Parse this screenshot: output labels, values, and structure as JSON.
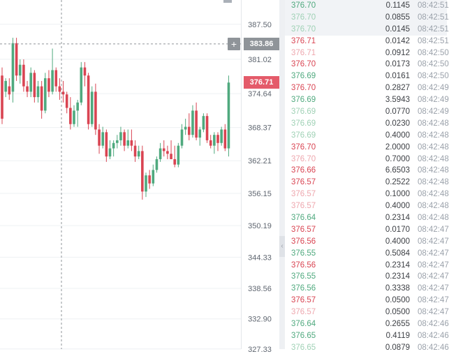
{
  "colors": {
    "up": "#4fa97e",
    "down": "#d94452",
    "up_light": "#9fd1b5",
    "down_light": "#eea7ae",
    "grid": "#eef0f3",
    "crosshair": "#8f9499",
    "axis_text": "#5f6670"
  },
  "chart_data": {
    "type": "candlestick",
    "ylim": [
      327.3,
      392.0
    ],
    "y_ticks": [
      "387.50",
      "381.02",
      "374.64",
      "368.37",
      "362.21",
      "356.15",
      "350.19",
      "344.33",
      "338.56",
      "332.90",
      "327.33"
    ],
    "crosshair_price": "383.86",
    "current_price": "376.71",
    "candles": [
      {
        "o": 378.0,
        "h": 379.5,
        "l": 369.0,
        "c": 370.0
      },
      {
        "o": 375.0,
        "h": 377.5,
        "l": 374.0,
        "c": 377.0
      },
      {
        "o": 376.0,
        "h": 377.5,
        "l": 373.5,
        "c": 374.5
      },
      {
        "o": 375.0,
        "h": 385.0,
        "l": 373.0,
        "c": 384.0
      },
      {
        "o": 384.0,
        "h": 385.0,
        "l": 377.0,
        "c": 378.0
      },
      {
        "o": 378.0,
        "h": 381.0,
        "l": 376.5,
        "c": 380.0
      },
      {
        "o": 380.0,
        "h": 381.0,
        "l": 375.0,
        "c": 376.0
      },
      {
        "o": 376.0,
        "h": 377.0,
        "l": 374.0,
        "c": 375.0
      },
      {
        "o": 375.0,
        "h": 379.5,
        "l": 374.0,
        "c": 378.5
      },
      {
        "o": 378.5,
        "h": 379.0,
        "l": 373.0,
        "c": 374.0
      },
      {
        "o": 374.0,
        "h": 377.0,
        "l": 373.0,
        "c": 376.0
      },
      {
        "o": 376.0,
        "h": 377.0,
        "l": 370.0,
        "c": 371.5
      },
      {
        "o": 371.5,
        "h": 378.5,
        "l": 371.0,
        "c": 377.5
      },
      {
        "o": 377.5,
        "h": 379.0,
        "l": 374.0,
        "c": 375.0
      },
      {
        "o": 375.0,
        "h": 383.0,
        "l": 374.5,
        "c": 379.0
      },
      {
        "o": 379.0,
        "h": 379.5,
        "l": 375.0,
        "c": 376.0
      },
      {
        "o": 376.0,
        "h": 377.5,
        "l": 373.5,
        "c": 375.0
      },
      {
        "o": 375.0,
        "h": 377.0,
        "l": 373.0,
        "c": 374.5
      },
      {
        "o": 374.5,
        "h": 375.0,
        "l": 371.0,
        "c": 372.0
      },
      {
        "o": 372.0,
        "h": 374.0,
        "l": 368.0,
        "c": 369.0
      },
      {
        "o": 369.0,
        "h": 372.5,
        "l": 368.5,
        "c": 371.5
      },
      {
        "o": 371.5,
        "h": 373.5,
        "l": 368.5,
        "c": 373.0
      },
      {
        "o": 373.0,
        "h": 380.5,
        "l": 372.5,
        "c": 379.5
      },
      {
        "o": 379.5,
        "h": 380.5,
        "l": 376.0,
        "c": 378.0
      },
      {
        "o": 378.0,
        "h": 378.5,
        "l": 368.0,
        "c": 369.0
      },
      {
        "o": 369.0,
        "h": 376.0,
        "l": 368.5,
        "c": 375.0
      },
      {
        "o": 375.0,
        "h": 376.5,
        "l": 367.0,
        "c": 368.0
      },
      {
        "o": 368.0,
        "h": 369.0,
        "l": 363.5,
        "c": 365.0
      },
      {
        "o": 365.0,
        "h": 368.5,
        "l": 364.5,
        "c": 367.5
      },
      {
        "o": 367.5,
        "h": 368.0,
        "l": 362.0,
        "c": 363.0
      },
      {
        "o": 363.0,
        "h": 366.0,
        "l": 362.5,
        "c": 364.5
      },
      {
        "o": 364.5,
        "h": 366.0,
        "l": 363.0,
        "c": 365.5
      },
      {
        "o": 365.5,
        "h": 367.0,
        "l": 364.5,
        "c": 366.0
      },
      {
        "o": 366.0,
        "h": 368.5,
        "l": 365.0,
        "c": 367.5
      },
      {
        "o": 367.5,
        "h": 368.0,
        "l": 364.0,
        "c": 365.0
      },
      {
        "o": 365.0,
        "h": 368.0,
        "l": 364.5,
        "c": 366.0
      },
      {
        "o": 366.0,
        "h": 368.0,
        "l": 364.0,
        "c": 365.0
      },
      {
        "o": 365.0,
        "h": 366.0,
        "l": 362.0,
        "c": 363.0
      },
      {
        "o": 363.0,
        "h": 365.0,
        "l": 362.5,
        "c": 364.0
      },
      {
        "o": 364.0,
        "h": 365.0,
        "l": 355.0,
        "c": 356.5
      },
      {
        "o": 356.5,
        "h": 360.0,
        "l": 355.5,
        "c": 359.5
      },
      {
        "o": 359.5,
        "h": 360.5,
        "l": 357.0,
        "c": 358.0
      },
      {
        "o": 358.0,
        "h": 361.5,
        "l": 357.5,
        "c": 360.5
      },
      {
        "o": 360.5,
        "h": 363.0,
        "l": 360.0,
        "c": 362.5
      },
      {
        "o": 362.5,
        "h": 365.5,
        "l": 362.0,
        "c": 364.5
      },
      {
        "o": 364.5,
        "h": 366.0,
        "l": 363.0,
        "c": 364.0
      },
      {
        "o": 364.0,
        "h": 365.0,
        "l": 362.5,
        "c": 363.5
      },
      {
        "o": 363.5,
        "h": 366.0,
        "l": 362.5,
        "c": 362.5
      },
      {
        "o": 362.5,
        "h": 365.0,
        "l": 361.0,
        "c": 361.5
      },
      {
        "o": 361.5,
        "h": 365.5,
        "l": 361.0,
        "c": 365.0
      },
      {
        "o": 365.0,
        "h": 369.0,
        "l": 364.5,
        "c": 368.0
      },
      {
        "o": 368.0,
        "h": 370.0,
        "l": 367.0,
        "c": 368.5
      },
      {
        "o": 368.5,
        "h": 371.0,
        "l": 366.0,
        "c": 367.0
      },
      {
        "o": 367.0,
        "h": 372.5,
        "l": 366.5,
        "c": 371.5
      },
      {
        "o": 371.5,
        "h": 373.0,
        "l": 366.0,
        "c": 366.5
      },
      {
        "o": 366.5,
        "h": 368.5,
        "l": 365.0,
        "c": 368.0
      },
      {
        "o": 368.0,
        "h": 371.0,
        "l": 367.5,
        "c": 370.5
      },
      {
        "o": 370.5,
        "h": 371.0,
        "l": 365.5,
        "c": 366.0
      },
      {
        "o": 366.0,
        "h": 367.0,
        "l": 364.5,
        "c": 365.0
      },
      {
        "o": 365.0,
        "h": 367.5,
        "l": 363.5,
        "c": 367.0
      },
      {
        "o": 367.0,
        "h": 367.5,
        "l": 364.0,
        "c": 365.5
      },
      {
        "o": 365.5,
        "h": 368.5,
        "l": 365.0,
        "c": 368.0
      },
      {
        "o": 368.0,
        "h": 369.0,
        "l": 364.0,
        "c": 364.5
      },
      {
        "o": 364.5,
        "h": 378.0,
        "l": 363.0,
        "c": 376.7
      }
    ]
  },
  "trades": [
    {
      "price": "376.70",
      "amount": "0.1145",
      "time": "08:42:51",
      "side": "up",
      "faded": false,
      "highlight": true
    },
    {
      "price": "376.70",
      "amount": "0.0855",
      "time": "08:42:51",
      "side": "up",
      "faded": true,
      "highlight": true
    },
    {
      "price": "376.70",
      "amount": "0.0145",
      "time": "08:42:51",
      "side": "up",
      "faded": true,
      "highlight": true
    },
    {
      "price": "376.71",
      "amount": "0.0142",
      "time": "08:42:51",
      "side": "down",
      "faded": false,
      "highlight": false
    },
    {
      "price": "376.71",
      "amount": "0.0912",
      "time": "08:42:50",
      "side": "down",
      "faded": true,
      "highlight": false
    },
    {
      "price": "376.70",
      "amount": "0.0173",
      "time": "08:42:50",
      "side": "down",
      "faded": false,
      "highlight": false
    },
    {
      "price": "376.69",
      "amount": "0.0161",
      "time": "08:42:50",
      "side": "up",
      "faded": false,
      "highlight": false
    },
    {
      "price": "376.70",
      "amount": "0.2827",
      "time": "08:42:49",
      "side": "down",
      "faded": false,
      "highlight": false
    },
    {
      "price": "376.69",
      "amount": "3.5943",
      "time": "08:42:49",
      "side": "up",
      "faded": false,
      "highlight": false
    },
    {
      "price": "376.69",
      "amount": "0.0770",
      "time": "08:42:49",
      "side": "up",
      "faded": true,
      "highlight": false
    },
    {
      "price": "376.69",
      "amount": "0.0230",
      "time": "08:42:48",
      "side": "up",
      "faded": true,
      "highlight": false
    },
    {
      "price": "376.69",
      "amount": "0.4000",
      "time": "08:42:48",
      "side": "up",
      "faded": true,
      "highlight": false
    },
    {
      "price": "376.70",
      "amount": "2.0000",
      "time": "08:42:48",
      "side": "down",
      "faded": false,
      "highlight": false
    },
    {
      "price": "376.70",
      "amount": "0.7000",
      "time": "08:42:48",
      "side": "down",
      "faded": true,
      "highlight": false
    },
    {
      "price": "376.66",
      "amount": "6.6503",
      "time": "08:42:48",
      "side": "down",
      "faded": false,
      "highlight": false
    },
    {
      "price": "376.57",
      "amount": "0.2522",
      "time": "08:42:48",
      "side": "down",
      "faded": false,
      "highlight": false
    },
    {
      "price": "376.57",
      "amount": "0.1000",
      "time": "08:42:48",
      "side": "down",
      "faded": true,
      "highlight": false
    },
    {
      "price": "376.57",
      "amount": "0.4000",
      "time": "08:42:48",
      "side": "down",
      "faded": true,
      "highlight": false
    },
    {
      "price": "376.64",
      "amount": "0.2314",
      "time": "08:42:48",
      "side": "up",
      "faded": false,
      "highlight": false
    },
    {
      "price": "376.57",
      "amount": "0.0170",
      "time": "08:42:47",
      "side": "down",
      "faded": false,
      "highlight": false
    },
    {
      "price": "376.56",
      "amount": "0.4000",
      "time": "08:42:47",
      "side": "down",
      "faded": false,
      "highlight": false
    },
    {
      "price": "376.55",
      "amount": "0.5084",
      "time": "08:42:47",
      "side": "up",
      "faded": false,
      "highlight": false
    },
    {
      "price": "376.56",
      "amount": "0.2314",
      "time": "08:42:47",
      "side": "down",
      "faded": false,
      "highlight": false
    },
    {
      "price": "376.55",
      "amount": "0.2314",
      "time": "08:42:47",
      "side": "up",
      "faded": false,
      "highlight": false
    },
    {
      "price": "376.56",
      "amount": "0.3338",
      "time": "08:42:47",
      "side": "up",
      "faded": false,
      "highlight": false
    },
    {
      "price": "376.57",
      "amount": "0.0500",
      "time": "08:42:47",
      "side": "down",
      "faded": false,
      "highlight": false
    },
    {
      "price": "376.57",
      "amount": "0.0500",
      "time": "08:42:47",
      "side": "down",
      "faded": true,
      "highlight": false
    },
    {
      "price": "376.64",
      "amount": "0.2655",
      "time": "08:42:46",
      "side": "up",
      "faded": false,
      "highlight": false
    },
    {
      "price": "376.65",
      "amount": "0.4119",
      "time": "08:42:46",
      "side": "up",
      "faded": false,
      "highlight": false
    },
    {
      "price": "376.65",
      "amount": "0.0879",
      "time": "08:42:46",
      "side": "up",
      "faded": true,
      "highlight": false
    }
  ]
}
